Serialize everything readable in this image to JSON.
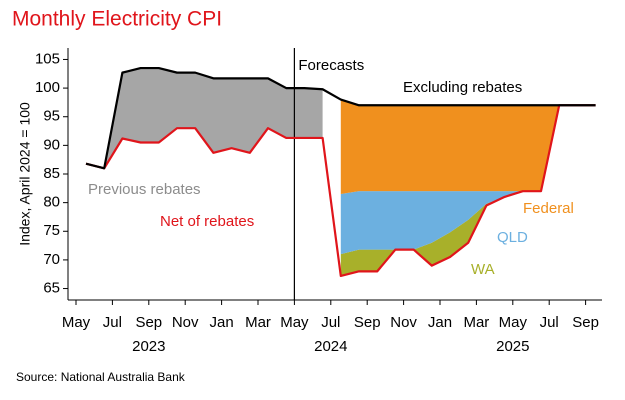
{
  "chart_data": {
    "type": "line",
    "title": "Monthly Electricity CPI",
    "y_label": "Index, April 2024 = 100",
    "source": "Source: National Australia Bank",
    "annotation": "Forecasts",
    "categories": [
      "May",
      null,
      "Jul",
      null,
      "Sep",
      null,
      "Nov",
      null,
      "Jan",
      null,
      "Mar",
      null,
      "May",
      null,
      "Jul",
      null,
      "Sep",
      null,
      "Nov",
      null,
      "Jan",
      null,
      "Mar",
      null,
      "May",
      null,
      "Jul",
      null,
      "Sep"
    ],
    "year_labels": [
      "2023",
      "2024",
      "2025"
    ],
    "ylim": [
      63,
      107
    ],
    "yticks": [
      65,
      70,
      75,
      80,
      85,
      90,
      95,
      100,
      105
    ],
    "series": [
      {
        "name": "Net of rebates",
        "type": "line",
        "color": "#e0151b",
        "values": [
          86.8,
          86,
          91.2,
          90.5,
          90.5,
          93,
          93,
          88.7,
          89.5,
          88.7,
          93,
          91.3,
          91.3,
          91.3,
          67.2,
          68,
          68,
          71.8,
          71.8,
          69,
          70.5,
          73,
          79.5,
          81,
          82,
          82,
          97,
          97,
          97
        ]
      },
      {
        "name": "Previous rebates",
        "type": "area",
        "color": "#a6a6a6",
        "values": [
          0,
          0,
          11.5,
          13,
          13,
          9.7,
          9.7,
          13,
          12.2,
          13,
          8.7,
          8.7,
          8.7,
          8.5,
          null,
          null,
          null,
          null,
          null,
          null,
          null,
          null,
          null,
          null,
          null,
          null,
          null,
          null,
          null
        ]
      },
      {
        "name": "WA",
        "type": "area",
        "color": "#a8b02a",
        "values": [
          null,
          null,
          null,
          null,
          null,
          null,
          null,
          null,
          null,
          null,
          null,
          null,
          null,
          null,
          3.8,
          3.8,
          3.8,
          0,
          0,
          4,
          4.3,
          4,
          0.3,
          0,
          0,
          0,
          0,
          null,
          null
        ]
      },
      {
        "name": "QLD",
        "type": "area",
        "color": "#6cb0e0",
        "values": [
          null,
          null,
          null,
          null,
          null,
          null,
          null,
          null,
          null,
          null,
          null,
          null,
          null,
          null,
          10.5,
          10.2,
          10.2,
          10.2,
          10.2,
          9,
          7.2,
          5,
          2.2,
          1,
          0,
          0,
          0,
          null,
          null
        ]
      },
      {
        "name": "Federal",
        "type": "area",
        "color": "#f0901e",
        "values": [
          null,
          null,
          null,
          null,
          null,
          null,
          null,
          null,
          null,
          null,
          null,
          null,
          null,
          null,
          16.5,
          15,
          15,
          15,
          15,
          15,
          15,
          15,
          15,
          15,
          15,
          15,
          0,
          null,
          null
        ]
      },
      {
        "name": "Excluding rebates",
        "type": "line",
        "color": "#000000",
        "values": [
          86.8,
          86,
          102.7,
          103.5,
          103.5,
          102.7,
          102.7,
          101.7,
          101.7,
          101.7,
          101.7,
          100,
          100,
          99.8,
          98,
          97,
          97,
          97,
          97,
          97,
          97,
          97,
          97,
          97,
          97,
          97,
          97,
          97,
          97
        ]
      }
    ]
  }
}
